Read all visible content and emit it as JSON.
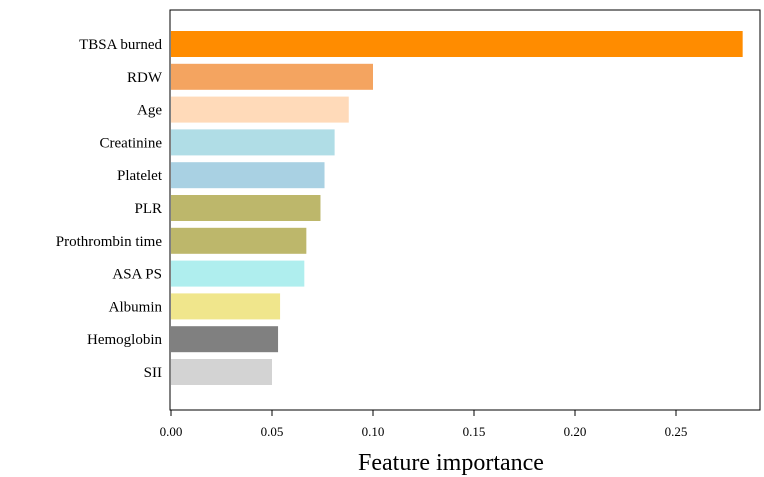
{
  "chart_data": {
    "type": "bar",
    "orientation": "horizontal",
    "title": "",
    "xlabel": "Feature importance",
    "ylabel": "",
    "xlim": [
      0,
      0.285
    ],
    "xticks": [
      0.0,
      0.05,
      0.1,
      0.15,
      0.2,
      0.25
    ],
    "xtick_labels": [
      "0.00",
      "0.05",
      "0.10",
      "0.15",
      "0.20",
      "0.25"
    ],
    "grid": false,
    "categories": [
      "TBSA burned",
      "RDW",
      "Age",
      "Creatinine",
      "Platelet",
      "PLR",
      "Prothrombin time",
      "ASA PS",
      "Albumin",
      "Hemoglobin",
      "SII"
    ],
    "values": [
      0.283,
      0.1,
      0.088,
      0.081,
      0.076,
      0.074,
      0.067,
      0.066,
      0.054,
      0.053,
      0.05
    ],
    "colors": [
      "#ff8c00",
      "#f4a460",
      "#ffdab9",
      "#b0dde6",
      "#a9d1e3",
      "#bdb76b",
      "#bdb76b",
      "#afeeee",
      "#f0e68c",
      "#808080",
      "#d3d3d3"
    ]
  }
}
